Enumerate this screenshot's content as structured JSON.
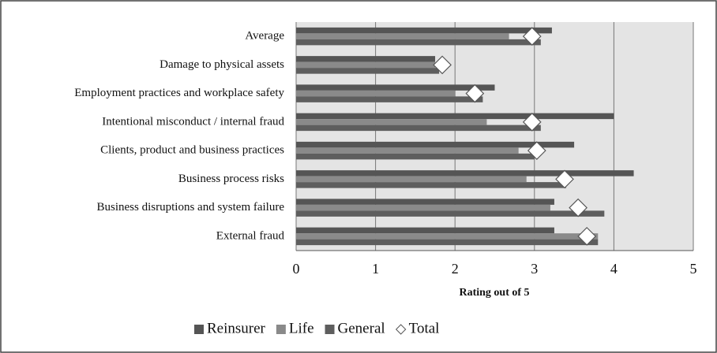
{
  "chart_data": {
    "type": "hbar",
    "x_label": "Rating out of 5",
    "categories": [
      "Average",
      "Damage to physical assets",
      "Employment practices and workplace safety",
      "Intentional misconduct / internal fraud",
      "Clients, product and business practices",
      "Business process risks",
      "Business disruptions and system failure",
      "External fraud"
    ],
    "series": [
      {
        "name": "Reinsurer",
        "type": "bar",
        "color": "#555555",
        "values": [
          3.22,
          1.75,
          2.5,
          4.0,
          3.5,
          4.25,
          3.25,
          3.25
        ]
      },
      {
        "name": "Life",
        "type": "bar",
        "color": "#8a8a8a",
        "values": [
          2.68,
          1.75,
          2.0,
          2.4,
          2.8,
          2.9,
          3.2,
          3.8
        ]
      },
      {
        "name": "General",
        "type": "bar",
        "color": "#5e5e5e",
        "values": [
          3.08,
          1.8,
          2.35,
          3.08,
          3.0,
          3.4,
          3.88,
          3.8
        ]
      },
      {
        "name": "Total",
        "type": "marker",
        "color": "#ffffff",
        "values": [
          2.97,
          1.84,
          2.25,
          2.97,
          3.03,
          3.38,
          3.55,
          3.66
        ]
      }
    ],
    "xlim": [
      0,
      5
    ],
    "xticks": [
      0,
      1,
      2,
      3,
      4,
      5
    ],
    "grid": true,
    "legend": "bottom"
  }
}
